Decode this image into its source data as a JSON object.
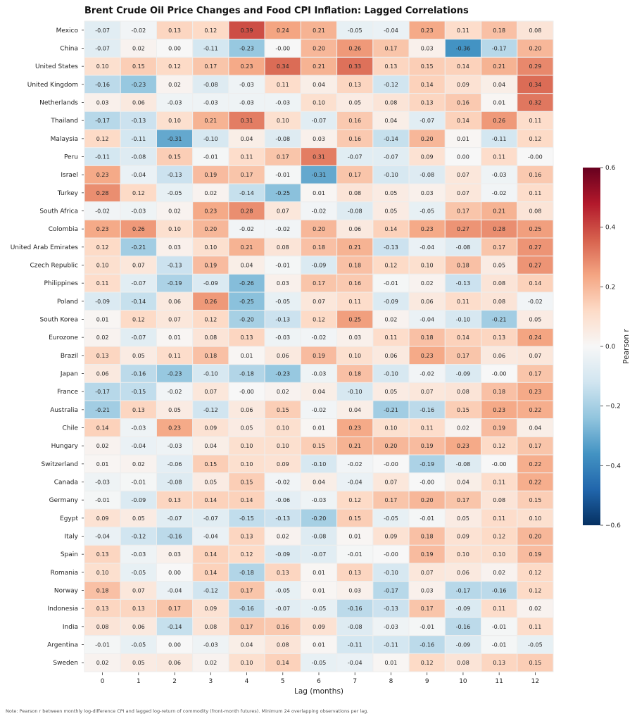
{
  "chart_data": {
    "type": "heatmap",
    "title": "Brent Crude Oil Price Changes and Food CPI Inflation: Lagged Correlations",
    "xlabel": "Lag (months)",
    "ylabel": "",
    "x": [
      "0",
      "1",
      "2",
      "3",
      "4",
      "5",
      "6",
      "7",
      "8",
      "9",
      "10",
      "11",
      "12"
    ],
    "rows": [
      "Mexico",
      "China",
      "United States",
      "United Kingdom",
      "Netherlands",
      "Thailand",
      "Malaysia",
      "Peru",
      "Israel",
      "Turkey",
      "South Africa",
      "Colombia",
      "United Arab Emirates",
      "Czech Republic",
      "Philippines",
      "Poland",
      "South Korea",
      "Eurozone",
      "Brazil",
      "Japan",
      "France",
      "Australia",
      "Chile",
      "Hungary",
      "Switzerland",
      "Canada",
      "Germany",
      "Egypt",
      "Italy",
      "Spain",
      "Romania",
      "Norway",
      "Indonesia",
      "India",
      "Argentina",
      "Sweden"
    ],
    "values": [
      [
        "-0.07",
        "-0.02",
        "0.13",
        "0.12",
        "0.39",
        "0.24",
        "0.21",
        "-0.05",
        "-0.04",
        "0.23",
        "0.11",
        "0.18",
        "0.08"
      ],
      [
        "-0.07",
        "0.02",
        "0.00",
        "-0.11",
        "-0.23",
        "-0.00",
        "0.20",
        "0.26",
        "0.17",
        "0.03",
        "-0.36",
        "-0.17",
        "0.20"
      ],
      [
        "0.10",
        "0.15",
        "0.12",
        "0.17",
        "0.23",
        "0.34",
        "0.21",
        "0.33",
        "0.13",
        "0.15",
        "0.14",
        "0.21",
        "0.29"
      ],
      [
        "-0.16",
        "-0.23",
        "0.02",
        "-0.08",
        "-0.03",
        "0.11",
        "0.04",
        "0.13",
        "-0.12",
        "0.14",
        "0.09",
        "0.04",
        "0.34"
      ],
      [
        "0.03",
        "0.06",
        "-0.03",
        "-0.03",
        "-0.03",
        "-0.03",
        "0.10",
        "0.05",
        "0.08",
        "0.13",
        "0.16",
        "0.01",
        "0.32"
      ],
      [
        "-0.17",
        "-0.13",
        "0.10",
        "0.21",
        "0.31",
        "0.10",
        "-0.07",
        "0.16",
        "0.04",
        "-0.07",
        "0.14",
        "0.26",
        "0.11"
      ],
      [
        "0.12",
        "-0.11",
        "-0.31",
        "-0.10",
        "0.04",
        "-0.08",
        "0.03",
        "0.16",
        "-0.14",
        "0.20",
        "0.01",
        "-0.11",
        "0.12"
      ],
      [
        "-0.11",
        "-0.08",
        "0.15",
        "-0.01",
        "0.11",
        "0.17",
        "0.31",
        "-0.07",
        "-0.07",
        "0.09",
        "0.00",
        "0.11",
        "-0.00"
      ],
      [
        "0.23",
        "-0.04",
        "-0.13",
        "0.19",
        "0.17",
        "-0.01",
        "-0.31",
        "0.17",
        "-0.10",
        "-0.08",
        "0.07",
        "-0.03",
        "0.16"
      ],
      [
        "0.28",
        "0.12",
        "-0.05",
        "0.02",
        "-0.14",
        "-0.25",
        "0.01",
        "0.08",
        "0.05",
        "0.03",
        "0.07",
        "-0.02",
        "0.11"
      ],
      [
        "-0.02",
        "-0.03",
        "0.02",
        "0.23",
        "0.28",
        "0.07",
        "-0.02",
        "-0.08",
        "0.05",
        "-0.05",
        "0.17",
        "0.21",
        "0.08"
      ],
      [
        "0.23",
        "0.26",
        "0.10",
        "0.20",
        "-0.02",
        "-0.02",
        "0.20",
        "0.06",
        "0.14",
        "0.23",
        "0.27",
        "0.28",
        "0.25"
      ],
      [
        "0.12",
        "-0.21",
        "0.03",
        "0.10",
        "0.21",
        "0.08",
        "0.18",
        "0.21",
        "-0.13",
        "-0.04",
        "-0.08",
        "0.17",
        "0.27"
      ],
      [
        "0.10",
        "0.07",
        "-0.13",
        "0.19",
        "0.04",
        "-0.01",
        "-0.09",
        "0.18",
        "0.12",
        "0.10",
        "0.18",
        "0.05",
        "0.27"
      ],
      [
        "0.11",
        "-0.07",
        "-0.19",
        "-0.09",
        "-0.26",
        "0.03",
        "0.17",
        "0.16",
        "-0.01",
        "0.02",
        "-0.13",
        "0.08",
        "0.14"
      ],
      [
        "-0.09",
        "-0.14",
        "0.06",
        "0.26",
        "-0.25",
        "-0.05",
        "0.07",
        "0.11",
        "-0.09",
        "0.06",
        "0.11",
        "0.08",
        "-0.02"
      ],
      [
        "0.01",
        "0.12",
        "0.07",
        "0.12",
        "-0.20",
        "-0.13",
        "0.12",
        "0.25",
        "0.02",
        "-0.04",
        "-0.10",
        "-0.21",
        "0.05"
      ],
      [
        "0.02",
        "-0.07",
        "0.01",
        "0.08",
        "0.13",
        "-0.03",
        "-0.02",
        "0.03",
        "0.11",
        "0.18",
        "0.14",
        "0.13",
        "0.24"
      ],
      [
        "0.13",
        "0.05",
        "0.11",
        "0.18",
        "0.01",
        "0.06",
        "0.19",
        "0.10",
        "0.06",
        "0.23",
        "0.17",
        "0.06",
        "0.07"
      ],
      [
        "0.06",
        "-0.16",
        "-0.23",
        "-0.10",
        "-0.18",
        "-0.23",
        "-0.03",
        "0.18",
        "-0.10",
        "-0.02",
        "-0.09",
        "-0.00",
        "0.17"
      ],
      [
        "-0.17",
        "-0.15",
        "-0.02",
        "0.07",
        "-0.00",
        "0.02",
        "0.04",
        "-0.10",
        "0.05",
        "0.07",
        "0.08",
        "0.18",
        "0.23"
      ],
      [
        "-0.21",
        "0.13",
        "0.05",
        "-0.12",
        "0.06",
        "0.15",
        "-0.02",
        "0.04",
        "-0.21",
        "-0.16",
        "0.15",
        "0.23",
        "0.22"
      ],
      [
        "0.14",
        "-0.03",
        "0.23",
        "0.09",
        "0.05",
        "0.10",
        "0.01",
        "0.23",
        "0.10",
        "0.11",
        "0.02",
        "0.19",
        "0.04"
      ],
      [
        "0.02",
        "-0.04",
        "-0.03",
        "0.04",
        "0.10",
        "0.10",
        "0.15",
        "0.21",
        "0.20",
        "0.19",
        "0.23",
        "0.12",
        "0.17"
      ],
      [
        "0.01",
        "0.02",
        "-0.06",
        "0.15",
        "0.10",
        "0.09",
        "-0.10",
        "-0.02",
        "-0.00",
        "-0.19",
        "-0.08",
        "-0.00",
        "0.22"
      ],
      [
        "-0.03",
        "-0.01",
        "-0.08",
        "0.05",
        "0.15",
        "-0.02",
        "0.04",
        "-0.04",
        "0.07",
        "-0.00",
        "0.04",
        "0.11",
        "0.22"
      ],
      [
        "-0.01",
        "-0.09",
        "0.13",
        "0.14",
        "0.14",
        "-0.06",
        "-0.03",
        "0.12",
        "0.17",
        "0.20",
        "0.17",
        "0.08",
        "0.15"
      ],
      [
        "0.09",
        "0.05",
        "-0.07",
        "-0.07",
        "-0.15",
        "-0.13",
        "-0.20",
        "0.15",
        "-0.05",
        "-0.01",
        "0.05",
        "0.11",
        "0.10"
      ],
      [
        "-0.04",
        "-0.12",
        "-0.16",
        "-0.04",
        "0.13",
        "0.02",
        "-0.08",
        "0.01",
        "0.09",
        "0.18",
        "0.09",
        "0.12",
        "0.20"
      ],
      [
        "0.13",
        "-0.03",
        "0.03",
        "0.14",
        "0.12",
        "-0.09",
        "-0.07",
        "-0.01",
        "-0.00",
        "0.19",
        "0.10",
        "0.10",
        "0.19"
      ],
      [
        "0.10",
        "-0.05",
        "0.00",
        "0.14",
        "-0.18",
        "0.13",
        "0.01",
        "0.13",
        "-0.10",
        "0.07",
        "0.06",
        "0.02",
        "0.12"
      ],
      [
        "0.18",
        "0.07",
        "-0.04",
        "-0.12",
        "0.17",
        "-0.05",
        "0.01",
        "0.03",
        "-0.17",
        "0.03",
        "-0.17",
        "-0.16",
        "0.12"
      ],
      [
        "0.13",
        "0.13",
        "0.17",
        "0.09",
        "-0.16",
        "-0.07",
        "-0.05",
        "-0.16",
        "-0.13",
        "0.17",
        "-0.09",
        "0.11",
        "0.02"
      ],
      [
        "0.08",
        "0.06",
        "-0.14",
        "0.08",
        "0.17",
        "0.16",
        "0.09",
        "-0.08",
        "-0.03",
        "-0.01",
        "-0.16",
        "-0.01",
        "0.11"
      ],
      [
        "-0.01",
        "-0.05",
        "0.00",
        "-0.03",
        "0.04",
        "0.08",
        "0.01",
        "-0.11",
        "-0.11",
        "-0.16",
        "-0.09",
        "-0.01",
        "-0.05"
      ],
      [
        "0.02",
        "0.05",
        "0.06",
        "0.02",
        "0.10",
        "0.14",
        "-0.05",
        "-0.04",
        "0.01",
        "0.12",
        "0.08",
        "0.13",
        "0.15"
      ]
    ],
    "colorbar": {
      "label": "Pearson r",
      "range": [
        -0.6,
        0.6
      ],
      "ticks": [
        "0.6",
        "0.4",
        "0.2",
        "0.0",
        "−0.2",
        "−0.4",
        "−0.6"
      ],
      "tick_values": [
        0.6,
        0.4,
        0.2,
        0.0,
        -0.2,
        -0.4,
        -0.6
      ],
      "colormap": "RdBu_r",
      "stops": [
        "#053061",
        "#2166ac",
        "#4393c3",
        "#92c5de",
        "#d1e5f0",
        "#f7f7f7",
        "#fddbc7",
        "#f4a582",
        "#d6604d",
        "#b2182b",
        "#67001f"
      ]
    },
    "grid": false,
    "legend": "colorbar-right"
  },
  "note": "Note: Pearson r between monthly log-difference CPI and lagged log-return of commodity (front-month futures). Minimum 24 overlapping observations per lag."
}
